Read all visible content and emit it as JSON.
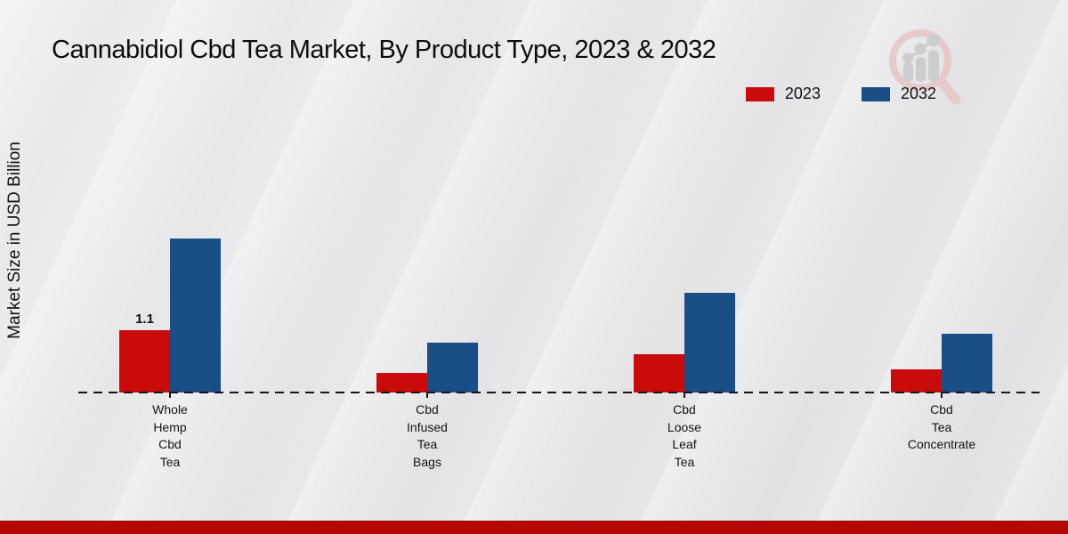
{
  "title": "Cannabidiol Cbd Tea Market, By Product Type, 2023 & 2032",
  "ylabel": "Market Size in USD Billion",
  "legend": {
    "items": [
      {
        "label": "2023",
        "color": "#c90b0b"
      },
      {
        "label": "2032",
        "color": "#1a4e87"
      }
    ]
  },
  "footer": {
    "band_color": "#b50802"
  },
  "logo": {
    "name": "magnifier-growth-watermark",
    "ring_color": "#e7c6c6",
    "bars_color": "#c9c9cc"
  },
  "chart_data": {
    "type": "bar",
    "title": "Cannabidiol Cbd Tea Market, By Product Type, 2023 & 2032",
    "xlabel": "",
    "ylabel": "Market Size in USD Billion",
    "categories": [
      "Whole Hemp Cbd Tea",
      "Cbd Infused Tea Bags",
      "Cbd Loose Leaf Tea",
      "Cbd Tea Concentrate"
    ],
    "categories_multiline": [
      [
        "Whole",
        "Hemp",
        "Cbd",
        "Tea"
      ],
      [
        "Cbd",
        "Infused",
        "Tea",
        "Bags"
      ],
      [
        "Cbd",
        "Loose",
        "Leaf",
        "Tea"
      ],
      [
        "Cbd",
        "Tea",
        "Concentrate"
      ]
    ],
    "series": [
      {
        "name": "2023",
        "color": "#c90b0b",
        "values": [
          1.1,
          0.35,
          0.68,
          0.41
        ]
      },
      {
        "name": "2032",
        "color": "#1a4e87",
        "values": [
          2.72,
          0.88,
          1.76,
          1.04
        ]
      }
    ],
    "annotations": [
      {
        "series_index": 0,
        "category_index": 0,
        "text": "1.1"
      }
    ],
    "ylim": [
      0,
      3.1
    ],
    "grid": false,
    "legend_position": "top-right",
    "baseline_style": "dashed"
  }
}
